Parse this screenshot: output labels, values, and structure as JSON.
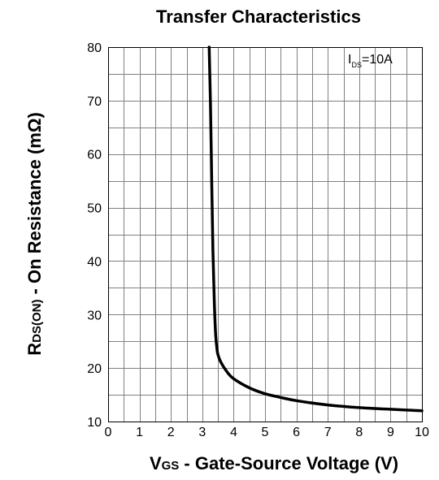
{
  "chart_data": {
    "type": "line",
    "title": "Transfer Characteristics",
    "xlabel": {
      "main": "V",
      "sub": "GS",
      "rest": " - Gate-Source Voltage (V)"
    },
    "ylabel": {
      "main": "R",
      "sub": "DS(ON)",
      "rest": " - On Resistance (mΩ)"
    },
    "xlim": [
      0,
      10
    ],
    "ylim": [
      10,
      80
    ],
    "xticks": [
      0,
      1,
      2,
      3,
      4,
      5,
      6,
      7,
      8,
      9,
      10
    ],
    "xtick_labels": [
      "0",
      "1",
      "2",
      "3",
      "4",
      "5",
      "6",
      "7",
      "8",
      "9",
      "10"
    ],
    "yticks": [
      10,
      20,
      30,
      40,
      50,
      60,
      70,
      80
    ],
    "ytick_labels": [
      "10",
      "20",
      "30",
      "40",
      "50",
      "60",
      "70",
      "80"
    ],
    "x_minor_step": 0.5,
    "y_minor_step": 5,
    "grid": true,
    "annotation": {
      "main": "I",
      "sub": "DS",
      "rest": "=10A"
    },
    "series": [
      {
        "color": "#000000",
        "x": [
          3.22,
          3.26,
          3.3,
          3.34,
          3.38,
          3.42,
          3.46,
          3.5,
          3.6,
          3.8,
          4.0,
          4.5,
          5.0,
          5.5,
          6.0,
          7.0,
          8.0,
          9.0,
          10.0
        ],
        "y": [
          80,
          70,
          55,
          42,
          33,
          27,
          24,
          22.5,
          21,
          19.2,
          18,
          16.3,
          15.2,
          14.5,
          13.9,
          13.1,
          12.6,
          12.3,
          12.0
        ]
      }
    ]
  }
}
